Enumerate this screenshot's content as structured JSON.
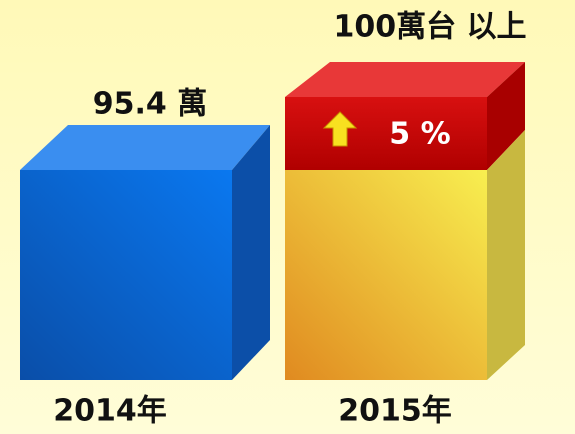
{
  "boxes": [
    {
      "label": "95.4 萬",
      "year": "2014年"
    },
    {
      "label": "100萬台 以上",
      "year": "2015年",
      "badge": "5 %"
    }
  ]
}
